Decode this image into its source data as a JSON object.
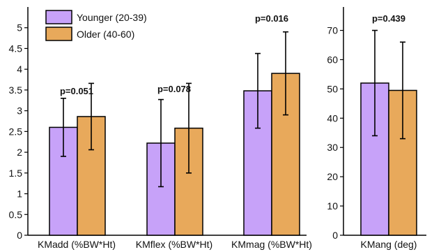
{
  "chart_data": [
    {
      "type": "bar",
      "categories": [
        "KMadd (%BW*Ht)",
        "KMflex (%BW*Ht)",
        "KMmag (%BW*Ht)"
      ],
      "series": [
        {
          "name": "Younger (20-39)",
          "color": "#c7a2f9",
          "values": [
            2.6,
            2.22,
            3.48
          ],
          "error": [
            0.7,
            1.05,
            0.9
          ]
        },
        {
          "name": "Older (40-60)",
          "color": "#e8a95b",
          "values": [
            2.86,
            2.58,
            3.9
          ],
          "error": [
            0.8,
            1.08,
            1.0
          ]
        }
      ],
      "annotations": [
        {
          "text": "p=0.051",
          "category": 0,
          "y": 3.4,
          "color": "#111111"
        },
        {
          "text": "p=0.078",
          "category": 1,
          "y": 3.45,
          "color": "#111111"
        },
        {
          "text": "p=0.016",
          "category": 2,
          "y": 5.15,
          "color": "#d62c2c"
        }
      ],
      "yticks": [
        "0",
        "0.5",
        "1",
        "1.5",
        "2",
        "2.5",
        "3",
        "3.5",
        "4",
        "4.5",
        "5"
      ],
      "ylim": [
        0,
        5.5
      ],
      "legend": "top-left"
    },
    {
      "type": "bar",
      "categories": [
        "KMang (deg)"
      ],
      "series": [
        {
          "name": "Younger (20-39)",
          "color": "#c7a2f9",
          "values": [
            52
          ],
          "error": [
            18
          ]
        },
        {
          "name": "Older (40-60)",
          "color": "#e8a95b",
          "values": [
            49.5
          ],
          "error": [
            16.5
          ]
        }
      ],
      "annotations": [
        {
          "text": "p=0.439",
          "category": 0,
          "y": 73,
          "color": "#111111"
        }
      ],
      "yticks": [
        "0",
        "10",
        "20",
        "30",
        "40",
        "50",
        "60",
        "70"
      ],
      "ylim": [
        0,
        78
      ]
    }
  ]
}
